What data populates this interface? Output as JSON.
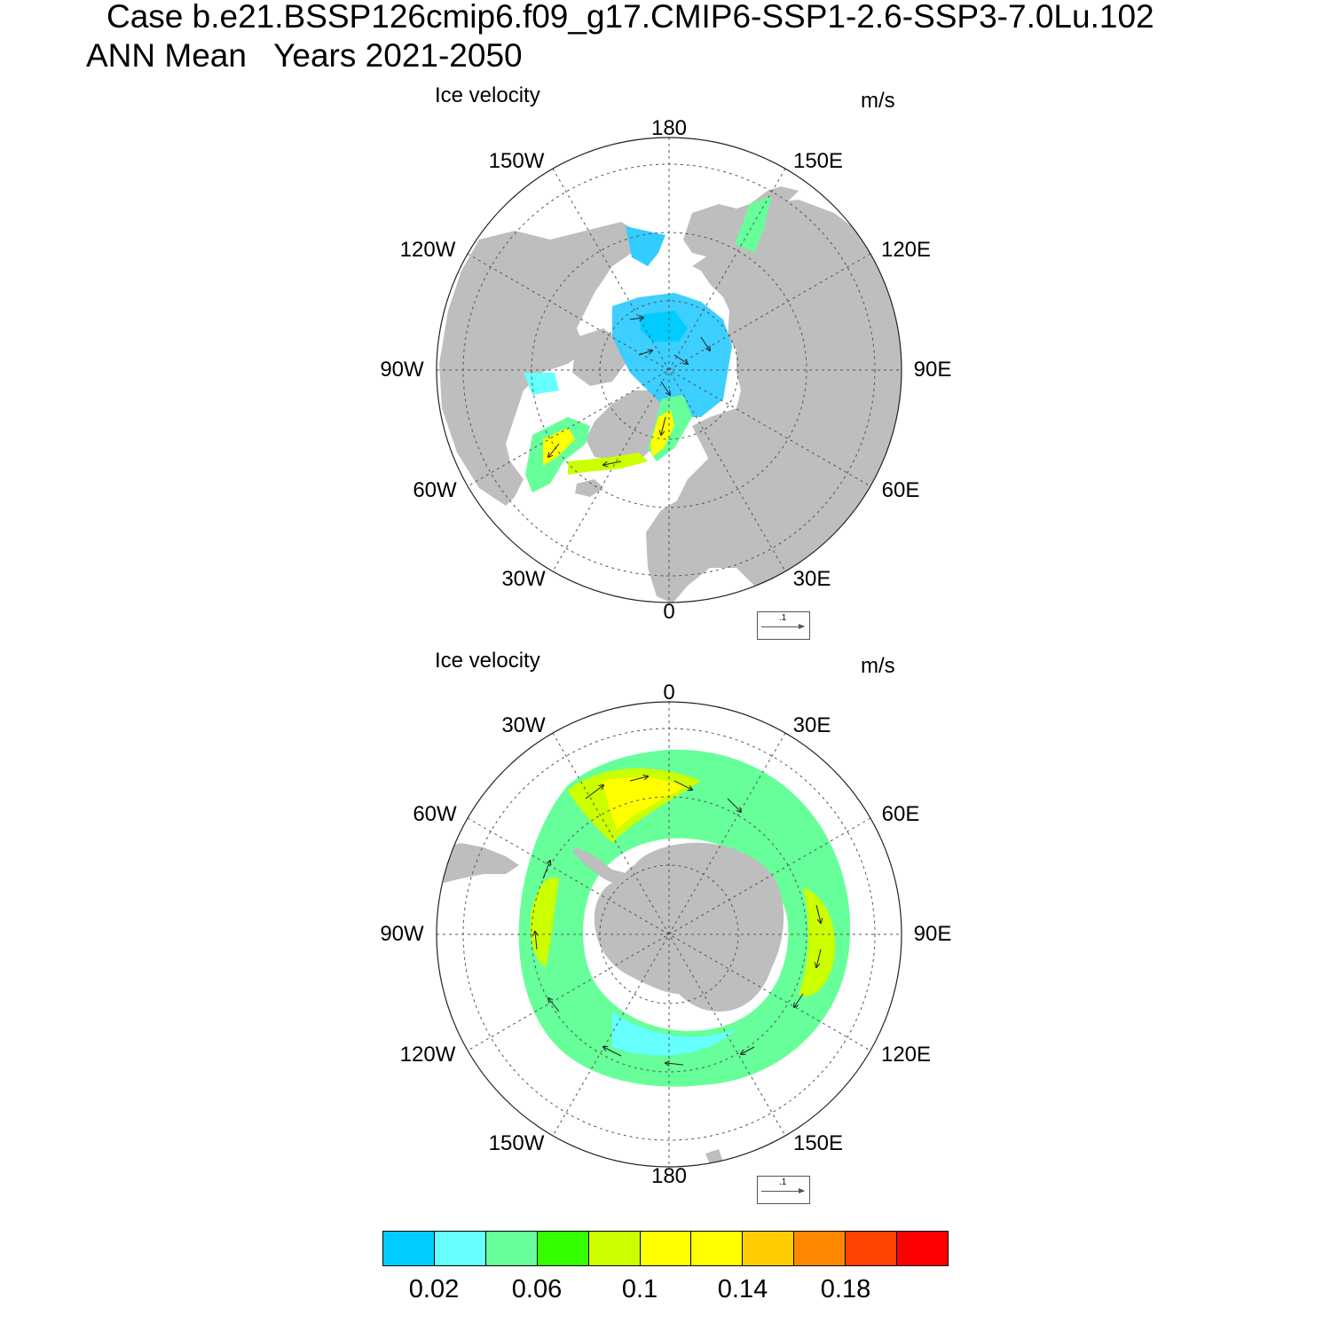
{
  "header": {
    "line1": "Case b.e21.BSSP126cmip6.f09_g17.CMIP6-SSP1-2.6-SSP3-7.0Lu.102",
    "line2": "ANN Mean   Years 2021-2050"
  },
  "panels": [
    {
      "hemisphere": "north",
      "title": "Ice velocity",
      "units": "m/s",
      "lon_labels": {
        "top": "180",
        "bottom": "0",
        "left": "90W",
        "right": "90E",
        "upper_left_1": "150W",
        "upper_left_2": "120W",
        "upper_right_1": "150E",
        "upper_right_2": "120E",
        "lower_left_1": "60W",
        "lower_left_2": "30W",
        "lower_right_1": "60E",
        "lower_right_2": "30E"
      },
      "reference_vector": ".1"
    },
    {
      "hemisphere": "south",
      "title": "Ice velocity",
      "units": "m/s",
      "lon_labels": {
        "top": "0",
        "bottom": "180",
        "left": "90W",
        "right": "90E",
        "upper_left_1": "30W",
        "upper_left_2": "60W",
        "upper_right_1": "30E",
        "upper_right_2": "60E",
        "lower_left_1": "120W",
        "lower_left_2": "150W",
        "lower_right_1": "120E",
        "lower_right_2": "150E"
      },
      "reference_vector": ".1"
    }
  ],
  "colorbar": {
    "colors": [
      "#00ccff",
      "#66ffff",
      "#66ff99",
      "#33ff00",
      "#ccff00",
      "#ffff00",
      "#ffff00",
      "#ffcc00",
      "#ff8800",
      "#ff4400",
      "#ff0000"
    ],
    "labels": [
      "0.02",
      "0.06",
      "0.1",
      "0.14",
      "0.18"
    ]
  },
  "colors": {
    "land": "#bebebe",
    "ocean": "#ffffff",
    "grid": "#555555"
  }
}
